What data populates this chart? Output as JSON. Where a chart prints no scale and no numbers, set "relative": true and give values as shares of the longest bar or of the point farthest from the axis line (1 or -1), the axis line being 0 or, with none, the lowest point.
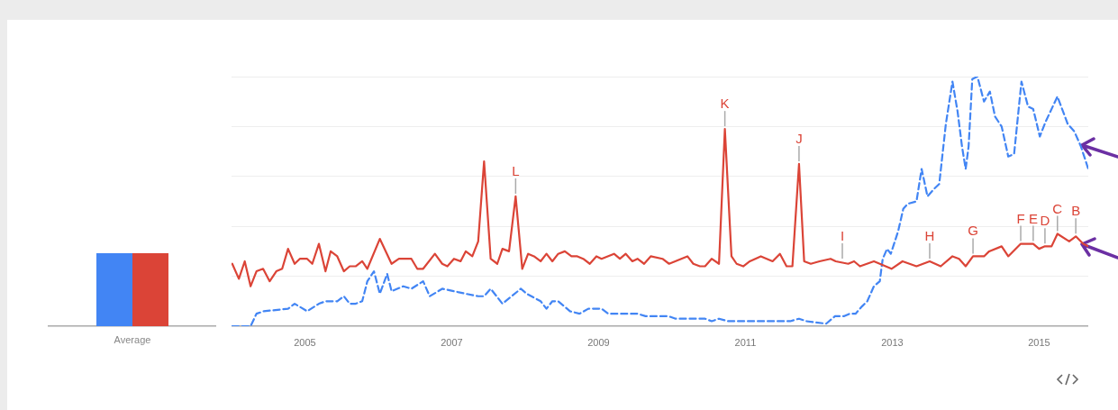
{
  "chart_data": [
    {
      "type": "bar",
      "categories": [
        "Average"
      ],
      "relative": true,
      "legend": false,
      "series": [
        {
          "color": "#4285f4",
          "values": [
            1
          ]
        },
        {
          "color": "#db4437",
          "values": [
            1
          ]
        }
      ]
    },
    {
      "type": "line",
      "relative": true,
      "grid": "y",
      "legend": false,
      "marker": "none",
      "xlim": [
        2004,
        2015.67
      ],
      "xticks": [
        2005,
        2007,
        2009,
        2011,
        2013,
        2015
      ],
      "series": [
        {
          "color": "#4285f4",
          "line_style": "dashed",
          "x": [
            2004.01,
            2004.26,
            2004.34,
            2004.44,
            2004.77,
            2004.86,
            2005.03,
            2005.19,
            2005.28,
            2005.36,
            2005.44,
            2005.53,
            2005.61,
            2005.69,
            2005.78,
            2005.85,
            2005.94,
            2006.02,
            2006.12,
            2006.18,
            2006.34,
            2006.45,
            2006.61,
            2006.7,
            2006.87,
            2007.03,
            2007.19,
            2007.36,
            2007.44,
            2007.53,
            2007.69,
            2007.94,
            2008.02,
            2008.21,
            2008.29,
            2008.37,
            2008.45,
            2008.61,
            2008.74,
            2008.86,
            2009.04,
            2009.13,
            2009.53,
            2009.64,
            2009.95,
            2010.05,
            2010.45,
            2010.54,
            2010.64,
            2010.76,
            2011.61,
            2011.73,
            2011.83,
            2012.1,
            2012.22,
            2012.34,
            2012.42,
            2012.5,
            2012.59,
            2012.66,
            2012.75,
            2012.83,
            2012.87,
            2012.93,
            2012.98,
            2013.08,
            2013.15,
            2013.21,
            2013.33,
            2013.4,
            2013.48,
            2013.57,
            2013.64,
            2013.73,
            2013.82,
            2013.89,
            2013.95,
            2014.0,
            2014.04,
            2014.09,
            2014.16,
            2014.25,
            2014.33,
            2014.4,
            2014.49,
            2014.58,
            2014.66,
            2014.76,
            2014.85,
            2014.92,
            2015.01,
            2015.09,
            2015.25,
            2015.39,
            2015.48,
            2015.57,
            2015.67
          ],
          "values": [
            0,
            0,
            0.05,
            0.06,
            0.07,
            0.09,
            0.06,
            0.09,
            0.1,
            0.1,
            0.1,
            0.12,
            0.09,
            0.09,
            0.1,
            0.18,
            0.22,
            0.13,
            0.21,
            0.14,
            0.16,
            0.15,
            0.18,
            0.12,
            0.15,
            0.14,
            0.13,
            0.12,
            0.12,
            0.15,
            0.09,
            0.15,
            0.13,
            0.1,
            0.07,
            0.1,
            0.1,
            0.06,
            0.05,
            0.07,
            0.07,
            0.05,
            0.05,
            0.04,
            0.04,
            0.03,
            0.03,
            0.02,
            0.03,
            0.02,
            0.02,
            0.03,
            0.02,
            0.01,
            0.04,
            0.04,
            0.05,
            0.05,
            0.08,
            0.1,
            0.16,
            0.18,
            0.27,
            0.31,
            0.29,
            0.38,
            0.47,
            0.49,
            0.5,
            0.63,
            0.52,
            0.55,
            0.57,
            0.81,
            0.98,
            0.86,
            0.72,
            0.63,
            0.72,
            0.99,
            1.0,
            0.9,
            0.94,
            0.84,
            0.8,
            0.68,
            0.69,
            0.98,
            0.88,
            0.87,
            0.76,
            0.82,
            0.92,
            0.81,
            0.78,
            0.72,
            0.63
          ]
        },
        {
          "color": "#db4437",
          "line_style": "solid",
          "x": [
            2004.01,
            2004.1,
            2004.18,
            2004.26,
            2004.34,
            2004.43,
            2004.52,
            2004.61,
            2004.69,
            2004.77,
            2004.86,
            2004.93,
            2005.03,
            2005.1,
            2005.19,
            2005.28,
            2005.35,
            2005.44,
            2005.53,
            2005.61,
            2005.69,
            2005.78,
            2005.85,
            2006.02,
            2006.18,
            2006.28,
            2006.45,
            2006.53,
            2006.61,
            2006.77,
            2006.87,
            2006.94,
            2007.03,
            2007.12,
            2007.19,
            2007.28,
            2007.36,
            2007.44,
            2007.53,
            2007.62,
            2007.69,
            2007.78,
            2007.87,
            2007.96,
            2008.04,
            2008.12,
            2008.21,
            2008.29,
            2008.37,
            2008.45,
            2008.54,
            2008.63,
            2008.71,
            2008.79,
            2008.88,
            2008.97,
            2009.04,
            2009.21,
            2009.29,
            2009.37,
            2009.46,
            2009.53,
            2009.62,
            2009.71,
            2009.87,
            2009.96,
            2010.21,
            2010.29,
            2010.38,
            2010.45,
            2010.54,
            2010.64,
            2010.72,
            2010.81,
            2010.88,
            2010.97,
            2011.06,
            2011.21,
            2011.37,
            2011.47,
            2011.56,
            2011.64,
            2011.73,
            2011.8,
            2011.89,
            2012.01,
            2012.16,
            2012.23,
            2012.4,
            2012.48,
            2012.56,
            2012.75,
            2012.83,
            2012.99,
            2013.14,
            2013.33,
            2013.51,
            2013.66,
            2013.82,
            2013.91,
            2014.0,
            2014.1,
            2014.25,
            2014.32,
            2014.49,
            2014.58,
            2014.75,
            2014.92,
            2015.0,
            2015.08,
            2015.17,
            2015.25,
            2015.41,
            2015.5,
            2015.6,
            2015.67
          ],
          "values": [
            0.25,
            0.19,
            0.26,
            0.16,
            0.22,
            0.23,
            0.18,
            0.22,
            0.23,
            0.31,
            0.25,
            0.27,
            0.27,
            0.25,
            0.33,
            0.22,
            0.3,
            0.28,
            0.22,
            0.24,
            0.24,
            0.26,
            0.23,
            0.35,
            0.25,
            0.27,
            0.27,
            0.23,
            0.23,
            0.29,
            0.25,
            0.24,
            0.27,
            0.26,
            0.3,
            0.28,
            0.34,
            0.66,
            0.27,
            0.25,
            0.31,
            0.3,
            0.52,
            0.23,
            0.29,
            0.28,
            0.26,
            0.29,
            0.26,
            0.29,
            0.3,
            0.28,
            0.28,
            0.27,
            0.25,
            0.28,
            0.27,
            0.29,
            0.27,
            0.29,
            0.26,
            0.27,
            0.25,
            0.28,
            0.27,
            0.25,
            0.28,
            0.25,
            0.24,
            0.24,
            0.27,
            0.25,
            0.79,
            0.28,
            0.25,
            0.24,
            0.26,
            0.28,
            0.26,
            0.29,
            0.24,
            0.24,
            0.65,
            0.26,
            0.25,
            0.26,
            0.27,
            0.26,
            0.25,
            0.26,
            0.24,
            0.26,
            0.25,
            0.23,
            0.26,
            0.24,
            0.26,
            0.24,
            0.28,
            0.27,
            0.24,
            0.28,
            0.28,
            0.3,
            0.32,
            0.28,
            0.33,
            0.33,
            0.31,
            0.32,
            0.32,
            0.37,
            0.34,
            0.36,
            0.33,
            0.32
          ]
        }
      ],
      "annotations": [
        {
          "text": "L",
          "x": 2007.87,
          "y": 0.52
        },
        {
          "text": "K",
          "x": 2010.72,
          "y": 0.79
        },
        {
          "text": "J",
          "x": 2011.73,
          "y": 0.65
        },
        {
          "text": "I",
          "x": 2012.32,
          "y": 0.26
        },
        {
          "text": "H",
          "x": 2013.51,
          "y": 0.26
        },
        {
          "text": "G",
          "x": 2014.1,
          "y": 0.28
        },
        {
          "text": "F",
          "x": 2014.75,
          "y": 0.33
        },
        {
          "text": "E",
          "x": 2014.92,
          "y": 0.33
        },
        {
          "text": "D",
          "x": 2015.08,
          "y": 0.32
        },
        {
          "text": "C",
          "x": 2015.25,
          "y": 0.37
        },
        {
          "text": "B",
          "x": 2015.5,
          "y": 0.36
        }
      ]
    }
  ]
}
